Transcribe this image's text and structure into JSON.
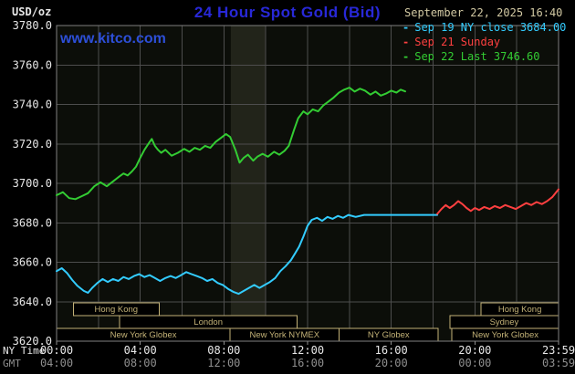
{
  "colors": {
    "background": "#000000",
    "title_blue": "#2828d7",
    "watermark_blue": "#2d4fd8",
    "date_tan": "#d2c9a3",
    "text_primary": "#e8e8e8",
    "text_secondary": "#8f8f8f",
    "grid": "#4d4d4d",
    "plot_border": "#7f7f7f",
    "plot_bg": "#0c0e09",
    "band_bg": "#22241a",
    "session": "#c3b277",
    "cyan": "#33ccff",
    "red": "#ff4040",
    "green": "#33cc33"
  },
  "header": {
    "units_label": "USD/oz",
    "title": "24 Hour Spot Gold (Bid)",
    "datetime": "September 22, 2025 16:40",
    "watermark": "www.kitco.com"
  },
  "legend": {
    "items": [
      {
        "marker": "-",
        "label": "Sep 19 NY close 3684.00",
        "color": "#33ccff"
      },
      {
        "marker": "-",
        "label": "Sep 21 Sunday",
        "color": "#ff4040"
      },
      {
        "marker": "-",
        "label": "Sep 22 Last 3746.60",
        "color": "#33cc33"
      }
    ]
  },
  "chart_data": {
    "type": "line",
    "title": "24 Hour Spot Gold (Bid)",
    "ylabel": "USD/oz",
    "xlabel_primary": "NY Time",
    "xlabel_secondary": "GMT",
    "ylim": [
      3620,
      3780
    ],
    "xlim_hours": [
      0,
      24
    ],
    "y_ticks": [
      3780,
      3760,
      3740,
      3720,
      3700,
      3680,
      3660,
      3640,
      3620
    ],
    "x_ticks": [
      {
        "hour": 0,
        "ny": "00:00",
        "gmt": "04:00"
      },
      {
        "hour": 4,
        "ny": "04:00",
        "gmt": "08:00"
      },
      {
        "hour": 8,
        "ny": "08:00",
        "gmt": "12:00"
      },
      {
        "hour": 12,
        "ny": "12:00",
        "gmt": "16:00"
      },
      {
        "hour": 16,
        "ny": "16:00",
        "gmt": "20:00"
      },
      {
        "hour": 20,
        "ny": "20:00",
        "gmt": "00:00"
      },
      {
        "hour": 24,
        "ny": "23:59",
        "gmt": "03:59"
      }
    ],
    "x_grid_step_hours": 2,
    "grid": true,
    "shaded_band_hours": [
      8.33,
      10
    ],
    "series": [
      {
        "name": "Sep 19 NY close 3684.00",
        "color": "#33ccff",
        "last_value": 3684.0,
        "points": [
          [
            0,
            3655.5
          ],
          [
            0.25,
            3657
          ],
          [
            0.5,
            3654.5
          ],
          [
            0.75,
            3651
          ],
          [
            1.0,
            3648
          ],
          [
            1.3,
            3645.5
          ],
          [
            1.5,
            3644.5
          ],
          [
            1.7,
            3647
          ],
          [
            1.95,
            3649.5
          ],
          [
            2.2,
            3651.5
          ],
          [
            2.45,
            3650
          ],
          [
            2.7,
            3651.5
          ],
          [
            2.95,
            3650.5
          ],
          [
            3.2,
            3652.5
          ],
          [
            3.45,
            3651.5
          ],
          [
            3.7,
            3653
          ],
          [
            3.95,
            3654
          ],
          [
            4.2,
            3652.5
          ],
          [
            4.45,
            3653.5
          ],
          [
            4.7,
            3652
          ],
          [
            4.95,
            3650.5
          ],
          [
            5.2,
            3652
          ],
          [
            5.45,
            3653
          ],
          [
            5.7,
            3652
          ],
          [
            5.95,
            3653.5
          ],
          [
            6.2,
            3655
          ],
          [
            6.45,
            3654
          ],
          [
            6.7,
            3653
          ],
          [
            6.95,
            3652
          ],
          [
            7.2,
            3650.5
          ],
          [
            7.45,
            3651.5
          ],
          [
            7.7,
            3649.5
          ],
          [
            7.95,
            3648.5
          ],
          [
            8.2,
            3646.5
          ],
          [
            8.45,
            3645
          ],
          [
            8.7,
            3644
          ],
          [
            8.95,
            3645.5
          ],
          [
            9.2,
            3647
          ],
          [
            9.45,
            3648.5
          ],
          [
            9.7,
            3647
          ],
          [
            9.95,
            3648.5
          ],
          [
            10.2,
            3650
          ],
          [
            10.45,
            3652
          ],
          [
            10.7,
            3655.5
          ],
          [
            10.95,
            3658
          ],
          [
            11.2,
            3661
          ],
          [
            11.4,
            3664.5
          ],
          [
            11.6,
            3668
          ],
          [
            11.8,
            3673
          ],
          [
            12.0,
            3678.5
          ],
          [
            12.2,
            3681.5
          ],
          [
            12.45,
            3682.5
          ],
          [
            12.7,
            3681
          ],
          [
            12.95,
            3683
          ],
          [
            13.2,
            3682
          ],
          [
            13.45,
            3683.5
          ],
          [
            13.7,
            3682.5
          ],
          [
            13.95,
            3684
          ],
          [
            14.3,
            3683
          ],
          [
            14.7,
            3684
          ],
          [
            15.5,
            3684
          ],
          [
            16.5,
            3684
          ],
          [
            17.5,
            3684
          ],
          [
            18.2,
            3684
          ]
        ]
      },
      {
        "name": "Sep 21 Sunday",
        "color": "#ff4040",
        "last_value": 3697.0,
        "points": [
          [
            18.2,
            3684.5
          ],
          [
            18.4,
            3687
          ],
          [
            18.6,
            3689
          ],
          [
            18.8,
            3687.5
          ],
          [
            19.0,
            3689
          ],
          [
            19.2,
            3691
          ],
          [
            19.4,
            3689.5
          ],
          [
            19.6,
            3687.5
          ],
          [
            19.8,
            3686
          ],
          [
            20.0,
            3687.5
          ],
          [
            20.2,
            3686.5
          ],
          [
            20.45,
            3688
          ],
          [
            20.7,
            3687
          ],
          [
            20.95,
            3688.5
          ],
          [
            21.2,
            3687.5
          ],
          [
            21.45,
            3689
          ],
          [
            21.7,
            3688
          ],
          [
            21.95,
            3687
          ],
          [
            22.2,
            3688.5
          ],
          [
            22.45,
            3690
          ],
          [
            22.7,
            3689
          ],
          [
            22.95,
            3690.5
          ],
          [
            23.2,
            3689.5
          ],
          [
            23.45,
            3691
          ],
          [
            23.7,
            3693
          ],
          [
            23.85,
            3695
          ],
          [
            24,
            3697
          ]
        ]
      },
      {
        "name": "Sep 22 Last 3746.60",
        "color": "#33cc33",
        "last_value": 3746.6,
        "points": [
          [
            0,
            3694
          ],
          [
            0.3,
            3695.5
          ],
          [
            0.6,
            3692.5
          ],
          [
            0.9,
            3692
          ],
          [
            1.2,
            3693.5
          ],
          [
            1.5,
            3695
          ],
          [
            1.8,
            3698.5
          ],
          [
            2.1,
            3700.5
          ],
          [
            2.4,
            3698.5
          ],
          [
            2.7,
            3701
          ],
          [
            3.0,
            3703.5
          ],
          [
            3.2,
            3705
          ],
          [
            3.4,
            3704
          ],
          [
            3.6,
            3706
          ],
          [
            3.8,
            3708.5
          ],
          [
            4.0,
            3713
          ],
          [
            4.2,
            3717
          ],
          [
            4.45,
            3721
          ],
          [
            4.55,
            3722.5
          ],
          [
            4.7,
            3719
          ],
          [
            4.85,
            3717
          ],
          [
            5.0,
            3715.5
          ],
          [
            5.2,
            3717
          ],
          [
            5.5,
            3714
          ],
          [
            5.8,
            3715.5
          ],
          [
            6.1,
            3717.5
          ],
          [
            6.35,
            3716
          ],
          [
            6.6,
            3718
          ],
          [
            6.85,
            3717
          ],
          [
            7.1,
            3719
          ],
          [
            7.35,
            3718
          ],
          [
            7.6,
            3721
          ],
          [
            7.85,
            3723
          ],
          [
            8.1,
            3725
          ],
          [
            8.3,
            3723.5
          ],
          [
            8.55,
            3717
          ],
          [
            8.75,
            3710.5
          ],
          [
            8.95,
            3713
          ],
          [
            9.15,
            3714.5
          ],
          [
            9.4,
            3711.5
          ],
          [
            9.6,
            3713.5
          ],
          [
            9.85,
            3715
          ],
          [
            10.1,
            3713.5
          ],
          [
            10.4,
            3716
          ],
          [
            10.65,
            3714.5
          ],
          [
            10.9,
            3716.5
          ],
          [
            11.1,
            3719
          ],
          [
            11.35,
            3727
          ],
          [
            11.55,
            3733
          ],
          [
            11.8,
            3736.5
          ],
          [
            12.0,
            3735
          ],
          [
            12.25,
            3737.5
          ],
          [
            12.5,
            3736.5
          ],
          [
            12.75,
            3739.5
          ],
          [
            13.0,
            3741.5
          ],
          [
            13.25,
            3743.5
          ],
          [
            13.5,
            3746
          ],
          [
            13.75,
            3747.5
          ],
          [
            14.0,
            3748.5
          ],
          [
            14.25,
            3746.5
          ],
          [
            14.5,
            3748
          ],
          [
            14.75,
            3747
          ],
          [
            15.0,
            3745
          ],
          [
            15.25,
            3746.5
          ],
          [
            15.5,
            3744.5
          ],
          [
            15.75,
            3745.5
          ],
          [
            16.0,
            3747
          ],
          [
            16.25,
            3746
          ],
          [
            16.45,
            3747.5
          ],
          [
            16.67,
            3746.6
          ]
        ]
      }
    ],
    "sessions": [
      {
        "row": 0,
        "start": 0.8,
        "end": 4.9,
        "label": "Hong Kong"
      },
      {
        "row": 0,
        "start": 20.3,
        "end": 24,
        "label": "Hong Kong"
      },
      {
        "row": 1,
        "start": 3.0,
        "end": 11.5,
        "label": "London"
      },
      {
        "row": 1,
        "start": 18.8,
        "end": 24,
        "label": "Sydney"
      },
      {
        "row": 2,
        "start": 0,
        "end": 8.3,
        "label": "New York Globex"
      },
      {
        "row": 2,
        "start": 8.3,
        "end": 13.5,
        "label": "New York NYMEX"
      },
      {
        "row": 2,
        "start": 13.5,
        "end": 18.25,
        "label": "NY Globex"
      },
      {
        "row": 2,
        "start": 18.9,
        "end": 24,
        "label": "New York Globex"
      }
    ]
  }
}
